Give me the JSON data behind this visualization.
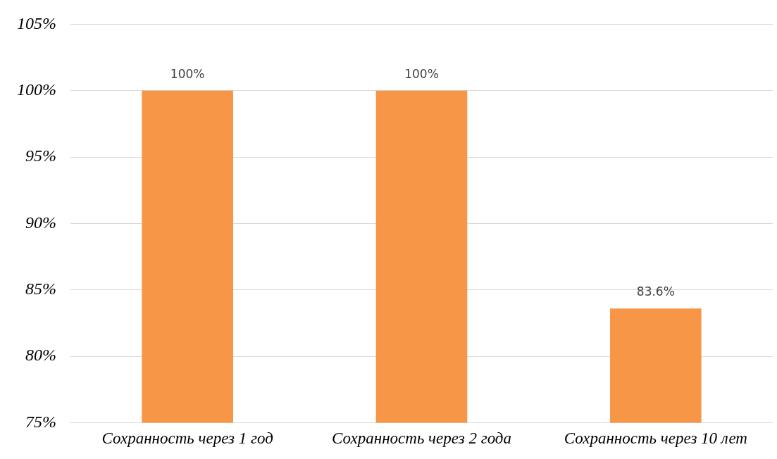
{
  "chart_data": {
    "type": "bar",
    "categories": [
      "Сохранность через 1 год",
      "Сохранность через 2 года",
      "Сохранность через 10 лет"
    ],
    "values": [
      100,
      100,
      83.6
    ],
    "value_labels": [
      "100%",
      "100%",
      "83.6%"
    ],
    "color": "#f79646",
    "ylim": [
      75,
      105
    ],
    "yticks": [
      {
        "value": 75,
        "label": "75%"
      },
      {
        "value": 80,
        "label": "80%"
      },
      {
        "value": 85,
        "label": "85%"
      },
      {
        "value": 90,
        "label": "90%"
      },
      {
        "value": 95,
        "label": "95%"
      },
      {
        "value": 100,
        "label": "100%"
      },
      {
        "value": 105,
        "label": "105%"
      }
    ],
    "grid": "y",
    "legend": false
  }
}
